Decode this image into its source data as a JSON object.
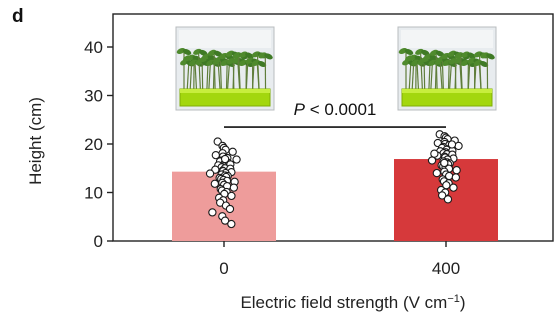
{
  "chart_data": {
    "type": "bar",
    "panel_label": "d",
    "categories": [
      "0",
      "400"
    ],
    "values": [
      14.3,
      16.9
    ],
    "bar_colors": [
      "#ee9c9b",
      "#d6393b"
    ],
    "ylabel": "Height (cm)",
    "xlabel_main": "Electric field strength (V cm",
    "xlabel_sup": "−1",
    "xlabel_tail": ")",
    "ylim": [
      0,
      45
    ],
    "yticks": [
      0,
      10,
      20,
      30,
      40
    ],
    "annotation": {
      "p_symbol": "P",
      "p_rest": " < 0.0001",
      "between": [
        "0",
        "400"
      ],
      "y": 23.5
    },
    "photos": [
      {
        "category": "0",
        "description": "seedling-tray-photo"
      },
      {
        "category": "400",
        "description": "seedling-tray-photo"
      }
    ],
    "points": [
      [
        20.5,
        19.6,
        19.2,
        18.8,
        18.4,
        18.1,
        17.7,
        17.4,
        17.1,
        16.8,
        16.6,
        16.4,
        16.2,
        16.0,
        15.8,
        15.6,
        15.4,
        15.2,
        15.0,
        14.9,
        14.7,
        14.5,
        14.4,
        14.2,
        14.0,
        13.9,
        13.7,
        13.5,
        13.4,
        13.2,
        13.0,
        12.8,
        12.6,
        12.4,
        12.2,
        12.0,
        11.8,
        11.6,
        11.3,
        11.0,
        10.7,
        10.4,
        10.1,
        9.7,
        9.3,
        8.9,
        8.4,
        7.9,
        7.3,
        6.6,
        5.9,
        5.1,
        4.2,
        3.5,
        16.9
      ],
      [
        22.0,
        21.6,
        21.3,
        21.0,
        20.7,
        20.4,
        20.2,
        20.0,
        19.8,
        19.6,
        19.4,
        19.2,
        19.0,
        18.8,
        18.6,
        18.5,
        18.3,
        18.1,
        17.9,
        17.8,
        17.6,
        17.4,
        17.2,
        17.0,
        16.8,
        16.6,
        16.4,
        16.2,
        16.0,
        15.8,
        15.6,
        15.4,
        15.2,
        14.9,
        14.6,
        14.3,
        14.0,
        13.7,
        13.4,
        13.1,
        12.7,
        12.3,
        11.9,
        11.5,
        11.0,
        10.5,
        10.0,
        9.4,
        8.6,
        19.9,
        18.0,
        16.1
      ]
    ]
  }
}
